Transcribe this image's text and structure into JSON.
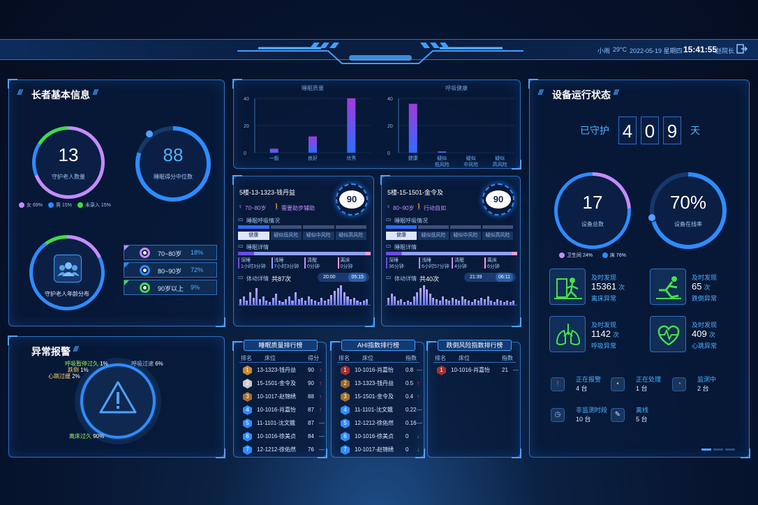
{
  "header": {
    "weather": "小雨",
    "temperature": "29°C",
    "date": "2022-05-19 星期四",
    "time": "15:41:55",
    "user": "赵院长"
  },
  "elder_info": {
    "title": "长者基本信息",
    "total": "13",
    "total_label": "守护老人数量",
    "median": "88",
    "median_label": "睡眠得分中位数",
    "gender_legend": [
      {
        "label": "女",
        "value": "69%",
        "color": "#c58cff"
      },
      {
        "label": "男",
        "value": "15%",
        "color": "#2e8cff"
      },
      {
        "label": "未录入",
        "value": "15%",
        "color": "#3fdc4a"
      }
    ],
    "age_label": "守护老人年龄分布",
    "age_groups": [
      {
        "label": "70~80岁",
        "value": "18%",
        "color": "#c58cff"
      },
      {
        "label": "80~90岁",
        "value": "72%",
        "color": "#2e8cff"
      },
      {
        "label": "90岁以上",
        "value": "9%",
        "color": "#3fdc4a"
      }
    ]
  },
  "alarm": {
    "title": "异常报警",
    "labels": [
      {
        "text": "呼吸暂停过久",
        "value": "1%"
      },
      {
        "text": "跌倒",
        "value": "1%"
      },
      {
        "text": "心跳过缓",
        "value": "2%"
      },
      {
        "text": "呼吸过速",
        "value": "6%"
      },
      {
        "text": "离床过久",
        "value": "90%"
      }
    ]
  },
  "charts": [
    {
      "type": "bar",
      "title": "睡眠质量",
      "categories": [
        "一般",
        "良好",
        "优秀"
      ],
      "values": [
        3,
        12,
        40
      ],
      "ylim": [
        0,
        40
      ],
      "yticks": [
        "40",
        "20",
        "0"
      ]
    },
    {
      "type": "bar",
      "title": "呼吸健康",
      "categories": [
        "健康",
        "疑似低风险",
        "疑似中风险",
        "疑似高风险"
      ],
      "category_lines": [
        [
          "健康"
        ],
        [
          "疑似",
          "低风险"
        ],
        [
          "疑似",
          "中风险"
        ],
        [
          "疑似",
          "高风险"
        ]
      ],
      "values": [
        36,
        1,
        0,
        0
      ],
      "ylim": [
        0,
        40
      ],
      "yticks": [
        "40",
        "20",
        "0"
      ]
    }
  ],
  "cards": [
    {
      "name": "5楼-13-1323-钱丹益",
      "score": "90",
      "age": "70~80岁",
      "mobility": "需要助步辅助",
      "breath_title": "睡眠呼吸情况",
      "breath_levels": [
        "健康",
        "疑似低风险",
        "疑似中风险",
        "疑似高风险"
      ],
      "sleep_title": "睡眠详情",
      "sleep_items": [
        {
          "name": "深睡",
          "value": "1小时3分钟"
        },
        {
          "name": "浅睡",
          "value": "7小时3分钟"
        },
        {
          "name": "清醒",
          "value": "0分钟"
        },
        {
          "name": "离床",
          "value": "0分钟"
        }
      ],
      "move_label": "体动详情",
      "move_total": "共87次",
      "start": "20:00",
      "end": "05:15",
      "move_values": [
        4,
        6,
        3,
        9,
        5,
        12,
        4,
        6,
        3,
        2,
        5,
        8,
        3,
        2,
        4,
        6,
        3,
        9,
        4,
        5,
        3,
        6,
        4,
        3,
        2,
        5,
        3,
        4,
        7,
        10,
        12,
        14,
        9,
        6,
        4,
        5,
        3,
        2,
        3,
        4
      ]
    },
    {
      "name": "5楼-15-1501-金令及",
      "score": "90",
      "age": "80~90岁",
      "mobility": "行动自如",
      "breath_title": "睡眠呼吸情况",
      "breath_levels": [
        "健康",
        "疑似低风险",
        "疑似中风险",
        "疑似高风险"
      ],
      "sleep_title": "睡眠详情",
      "sleep_items": [
        {
          "name": "深睡",
          "value": "36分钟"
        },
        {
          "name": "浅睡",
          "value": "6小时57分钟"
        },
        {
          "name": "清醒",
          "value": "4分钟"
        },
        {
          "name": "离床",
          "value": "6分钟"
        }
      ],
      "move_label": "体动详情",
      "move_total": "共40次",
      "start": "21:39",
      "end": "06:11",
      "move_values": [
        5,
        8,
        6,
        3,
        4,
        2,
        3,
        2,
        6,
        9,
        12,
        14,
        11,
        8,
        5,
        4,
        3,
        6,
        4,
        3,
        5,
        4,
        3,
        6,
        4,
        3,
        2,
        4,
        3,
        5,
        4,
        6,
        3,
        2,
        4,
        3,
        2,
        3,
        2,
        3
      ]
    }
  ],
  "rankings": [
    {
      "title": "睡眠质量排行榜",
      "headers": [
        "排名",
        "床位",
        "得分"
      ],
      "rows": [
        {
          "rank": "1",
          "bed": "13-1323-钱丹益",
          "value": "90",
          "trend": "↑"
        },
        {
          "rank": "2",
          "bed": "15-1501-金令及",
          "value": "90",
          "trend": "↑"
        },
        {
          "rank": "3",
          "bed": "10-1017-赵锦绣",
          "value": "88",
          "trend": "↑"
        },
        {
          "rank": "4",
          "bed": "10-1016-肖嘉怡",
          "value": "87",
          "trend": "↑"
        },
        {
          "rank": "5",
          "bed": "11-1101-沈文娥",
          "value": "87",
          "trend": "—"
        },
        {
          "rank": "6",
          "bed": "10-1016-徐美贞",
          "value": "84",
          "trend": "—"
        },
        {
          "rank": "7",
          "bed": "12-1212-徐佑然",
          "value": "76",
          "trend": "—"
        }
      ]
    },
    {
      "title": "AHI指数排行榜",
      "headers": [
        "排名",
        "床位",
        "指数"
      ],
      "rows": [
        {
          "rank": "1",
          "bed": "10-1016-肖嘉怡",
          "value": "0.8",
          "trend": "—"
        },
        {
          "rank": "2",
          "bed": "13-1323-钱丹益",
          "value": "0.5",
          "trend": "↑"
        },
        {
          "rank": "3",
          "bed": "15-1501-金令及",
          "value": "0.4",
          "trend": "↑"
        },
        {
          "rank": "4",
          "bed": "11-1101-沈文娥",
          "value": "0.22",
          "trend": "—"
        },
        {
          "rank": "5",
          "bed": "12-1212-徐佑然",
          "value": "0.16",
          "trend": "—"
        },
        {
          "rank": "6",
          "bed": "10-1016-徐美贞",
          "value": "0",
          "trend": "↓"
        },
        {
          "rank": "7",
          "bed": "10-1017-赵锦绣",
          "value": "0",
          "trend": "↓"
        }
      ]
    },
    {
      "title": "跌倒风险指数排行榜",
      "headers": [
        "排名",
        "床位",
        "指数"
      ],
      "rows": [
        {
          "rank": "1",
          "bed": "10-1016-肖嘉怡",
          "value": "21",
          "trend": "—"
        }
      ]
    }
  ],
  "device": {
    "title": "设备运行状态",
    "guard_prefix": "已守护",
    "guard_digits": [
      "4",
      "0",
      "9"
    ],
    "guard_unit": "天",
    "total": "17",
    "total_label": "设备总数",
    "online": "70%",
    "online_label": "设备在线率",
    "legend": [
      {
        "label": "卫生间",
        "value": "24%",
        "color": "#c58cff"
      },
      {
        "label": "床",
        "value": "76%",
        "color": "#2e8cff"
      }
    ],
    "events": [
      {
        "label": "及时发现",
        "count": "15361",
        "unit": "次",
        "desc": "离床异常",
        "icon": "bed-exit-icon"
      },
      {
        "label": "及时发现",
        "count": "65",
        "unit": "次",
        "desc": "跌倒异常",
        "icon": "fall-icon"
      },
      {
        "label": "及时发现",
        "count": "1142",
        "unit": "次",
        "desc": "呼吸异常",
        "icon": "lungs-icon"
      },
      {
        "label": "及时发现",
        "count": "409",
        "unit": "次",
        "desc": "心跳异常",
        "icon": "heart-icon"
      }
    ],
    "statuses": [
      {
        "label": "正在报警",
        "value": "4 台",
        "icon": "alarm-icon",
        "color": "#ff4b4b",
        "glyph": "!"
      },
      {
        "label": "正在处理",
        "value": "1 台",
        "icon": "processing-icon",
        "color": "#ffb020",
        "glyph": "•"
      },
      {
        "label": "监测中",
        "value": "2 台",
        "icon": "monitoring-icon",
        "color": "#4fa3ff",
        "glyph": "◔"
      },
      {
        "label": "非监测时段",
        "value": "10 台",
        "icon": "non-monitoring-icon",
        "color": "#9fc3ee",
        "glyph": "◷"
      },
      {
        "label": "离线",
        "value": "5 台",
        "icon": "offline-icon",
        "color": "#cfe4ff",
        "glyph": "✎"
      }
    ]
  }
}
